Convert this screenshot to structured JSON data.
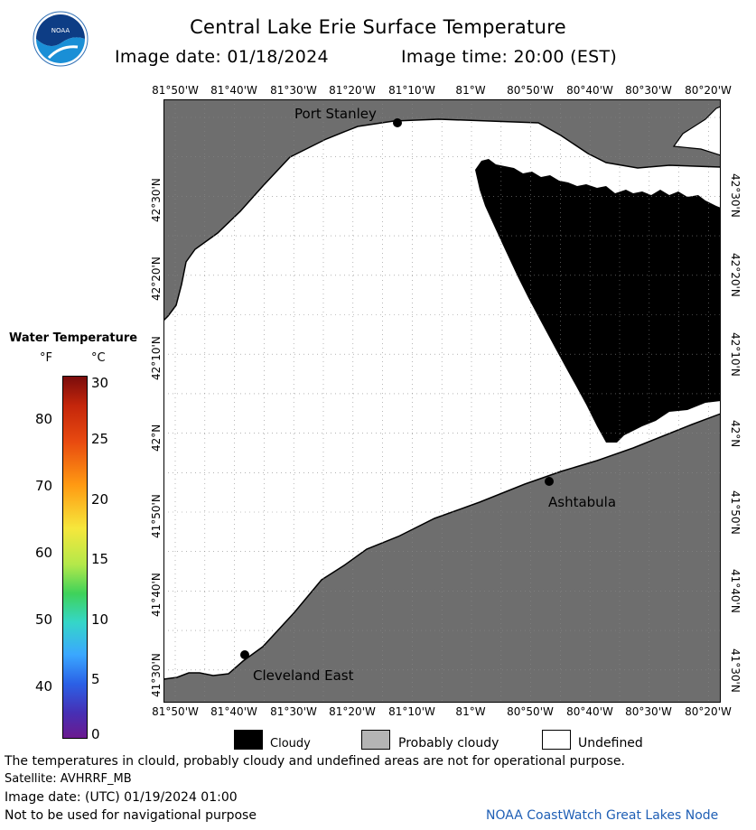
{
  "header": {
    "title": "Central Lake Erie Surface Temperature",
    "image_date": "Image date: 01/18/2024",
    "image_time": "Image time: 20:00 (EST)",
    "logo_text": "NOAA"
  },
  "lon_labels": [
    "81°50'W",
    "81°40'W",
    "81°30'W",
    "81°20'W",
    "81°10'W",
    "81°W",
    "80°50'W",
    "80°40'W",
    "80°30'W",
    "80°20'W"
  ],
  "lat_labels": [
    "42°30'N",
    "42°20'N",
    "42°10'N",
    "42°N",
    "41°50'N",
    "41°40'N",
    "41°30'N"
  ],
  "places": {
    "port_stanley": "Port Stanley",
    "ashtabula": "Ashtabula",
    "cleveland_east": "Cleveland East"
  },
  "scale": {
    "title": "Water Temperature",
    "unit_f": "°F",
    "unit_c": "°C",
    "f_ticks": [
      "80",
      "70",
      "60",
      "50",
      "40"
    ],
    "c_ticks": [
      "30",
      "25",
      "20",
      "15",
      "10",
      "5",
      "0"
    ]
  },
  "legend": {
    "cloudy": "Cloudy",
    "probably_cloudy": "Probably cloudy",
    "undefined": "Undefined"
  },
  "colors": {
    "land": "#6e6e6e",
    "cloudy": "#000000",
    "probably_cloudy": "#b4b4b4",
    "undefined": "#ffffff",
    "credit": "#1f5fb5"
  },
  "footer": {
    "disclaimer": "The temperatures in clould, probably cloudy and undefined areas are not for operational purpose.",
    "satellite": "Satellite: AVHRRF_MB",
    "utc_date": "Image date: (UTC) 01/19/2024  01:00",
    "navigation": "Not to be used for navigational purpose",
    "credit": "NOAA CoastWatch Great Lakes Node"
  }
}
